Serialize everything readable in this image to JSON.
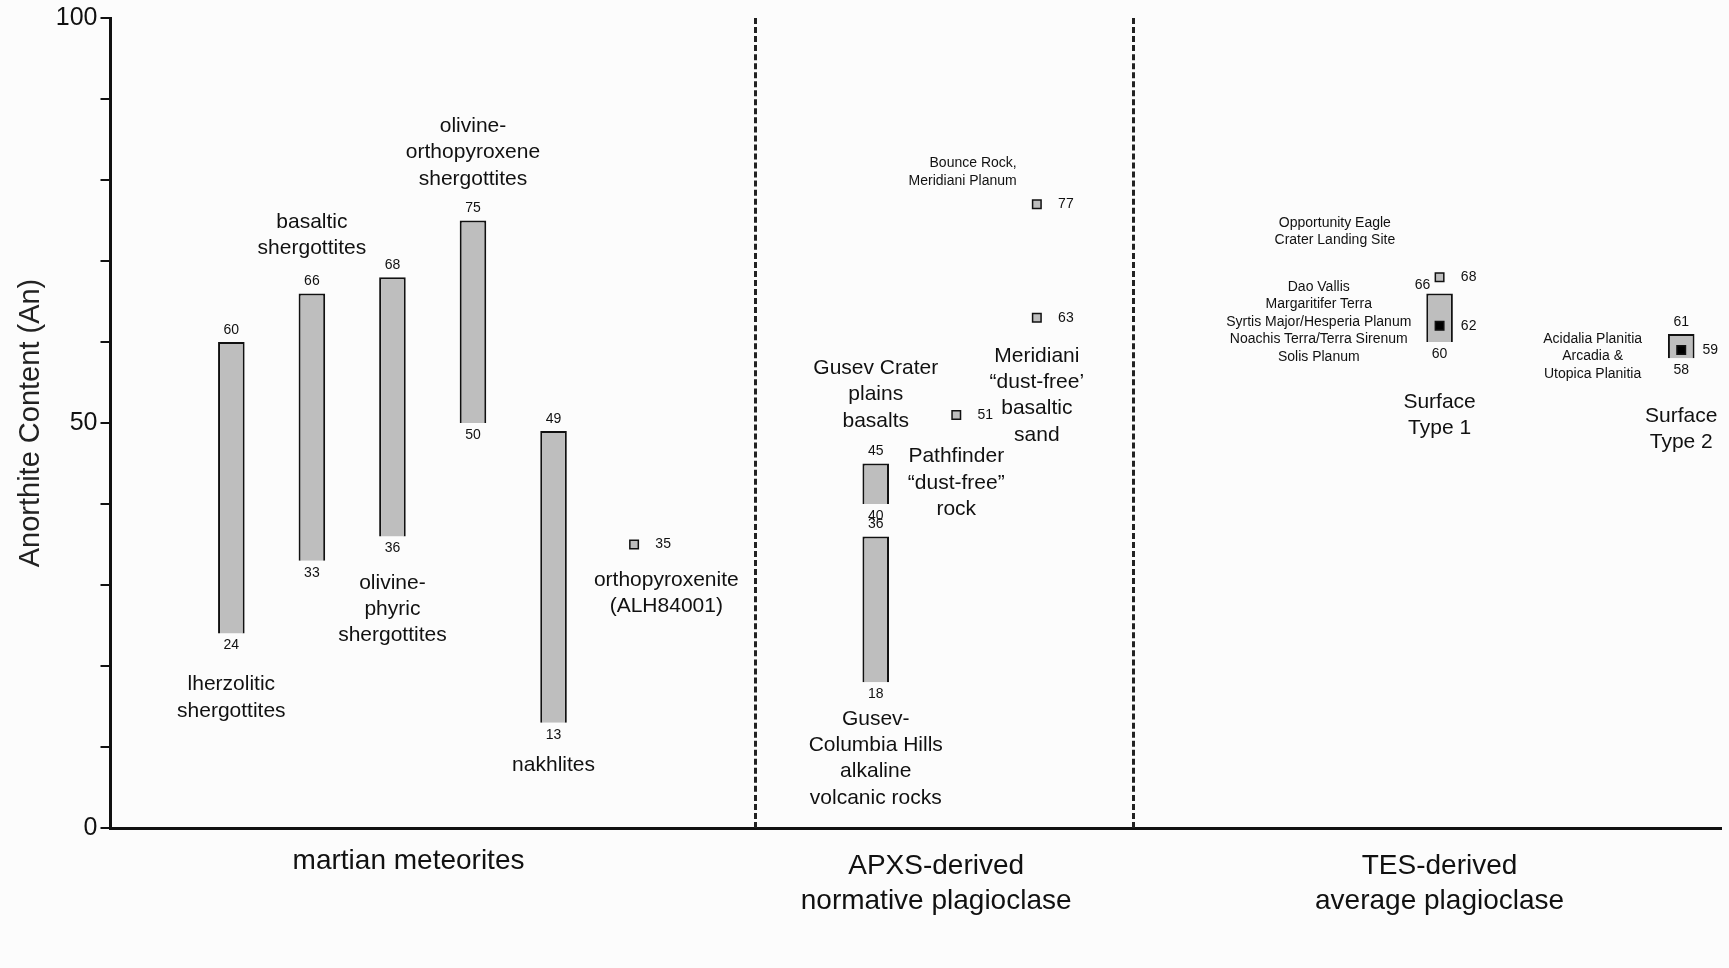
{
  "chart_data": {
    "type": "bar",
    "ylabel": "Anorthite Content (An)",
    "categories": [
      null,
      null,
      null,
      null,
      null,
      null,
      null,
      null,
      null,
      null,
      null,
      null,
      null,
      null,
      null,
      null,
      null,
      null,
      null,
      null
    ],
    "series": [
      {
        "type": "bar",
        "color": "#bebebe",
        "base": [
          null,
          24,
          33,
          36,
          50,
          13,
          null,
          null,
          null,
          18,
          null,
          null,
          null,
          null,
          null,
          null,
          60,
          null,
          null,
          58
        ],
        "values": [
          null,
          36,
          33,
          32,
          25,
          36,
          null,
          null,
          null,
          18,
          null,
          null,
          null,
          null,
          null,
          null,
          6,
          null,
          null,
          3
        ]
      },
      {
        "type": "bar",
        "color": "#bebebe",
        "base": [
          null,
          null,
          null,
          null,
          null,
          null,
          null,
          null,
          null,
          40,
          null,
          null,
          null,
          null,
          null,
          null,
          null,
          null,
          null,
          null
        ],
        "values": [
          null,
          null,
          null,
          null,
          null,
          null,
          null,
          null,
          null,
          5,
          null,
          null,
          null,
          null,
          null,
          null,
          null,
          null,
          null,
          null
        ]
      },
      {
        "type": "scatter",
        "color": "#bebebe",
        "values": [
          null,
          null,
          null,
          null,
          null,
          null,
          35,
          null,
          null,
          null,
          51,
          77,
          null,
          null,
          null,
          null,
          68,
          null,
          null,
          null
        ],
        "value_labels": [
          null,
          null,
          null,
          null,
          null,
          null,
          "35",
          null,
          null,
          null,
          "51",
          "77",
          null,
          null,
          null,
          null,
          "68",
          null,
          null,
          null
        ]
      },
      {
        "type": "scatter",
        "color": "#bebebe",
        "values": [
          null,
          null,
          null,
          null,
          null,
          null,
          null,
          null,
          null,
          null,
          null,
          63,
          null,
          null,
          null,
          null,
          null,
          null,
          null,
          null
        ],
        "value_labels": [
          null,
          null,
          null,
          null,
          null,
          null,
          null,
          null,
          null,
          null,
          null,
          "63",
          null,
          null,
          null,
          null,
          null,
          null,
          null,
          null
        ]
      },
      {
        "type": "scatter",
        "color": "#000000",
        "values": [
          null,
          null,
          null,
          null,
          null,
          null,
          null,
          null,
          null,
          null,
          null,
          null,
          null,
          null,
          null,
          null,
          62,
          null,
          null,
          59
        ],
        "value_labels": [
          null,
          null,
          null,
          null,
          null,
          null,
          null,
          null,
          null,
          null,
          null,
          null,
          null,
          null,
          null,
          null,
          "62",
          null,
          null,
          "59"
        ]
      }
    ],
    "ylim": [
      0,
      100
    ],
    "yticks": [
      0,
      {
        "value": 10,
        "label": null
      },
      {
        "value": 20,
        "label": null
      },
      {
        "value": 30,
        "label": null
      },
      {
        "value": 40,
        "label": null
      },
      50,
      {
        "value": 60,
        "label": null
      },
      {
        "value": 70,
        "label": null
      },
      {
        "value": 80,
        "label": null
      },
      {
        "value": 90,
        "label": null
      },
      100
    ],
    "marker": "square",
    "tick_labels": "y",
    "annotations": [
      {
        "text": "60",
        "y": 60
      },
      {
        "text": "24",
        "y": 24
      },
      "66",
      {
        "text": "33",
        "y": 33
      },
      {
        "text": "68",
        "y": 68
      },
      {
        "text": "36",
        "y": 36
      },
      {
        "text": "75",
        "y": 75
      },
      {
        "text": "50",
        "y": 50
      },
      {
        "text": "49",
        "y": 49
      },
      {
        "text": "13",
        "y": 13
      },
      {
        "text": "45",
        "y": 45
      },
      {
        "text": "40",
        "y": 40
      },
      {
        "text": "36",
        "y": 36
      },
      {
        "text": "18",
        "y": 18
      },
      "66",
      {
        "text": "60",
        "y": 60
      },
      {
        "text": "61",
        "y": 61
      },
      {
        "text": "58",
        "y": 58
      },
      "lherzolitic\nshergottites",
      "basaltic\nshergottites",
      "olivine-\nphyric\nshergottites",
      "olivine-\northopyroxene\nshergottites",
      "nakhlites",
      "orthopyroxenite\n(ALH84001)",
      "Gusev Crater\nplains\nbasalts",
      "Gusev-\nColumbia Hills\nalkaline\nvolcanic rocks",
      "Pathfinder\n“dust-free”\nrock",
      "Bounce Rock,\nMeridiani Planum",
      "Meridiani\n“dust-free’\nbasaltic\nsand",
      "Opportunity Eagle\nCrater Landing Site",
      "Dao Vallis\nMargaritifer Terra\nSyrtis Major/Hesperia Planum\nNoachis Terra/Terra Sirenum\nSolis Planum",
      "Surface\nType 1",
      "Acidalia Planitia\nArcadia &\nUtopica Planitia",
      "Surface\nType 2",
      "martian meteorites",
      "APXS-derived\nnormative plagioclase",
      "TES-derived\naverage plagioclase"
    ]
  }
}
